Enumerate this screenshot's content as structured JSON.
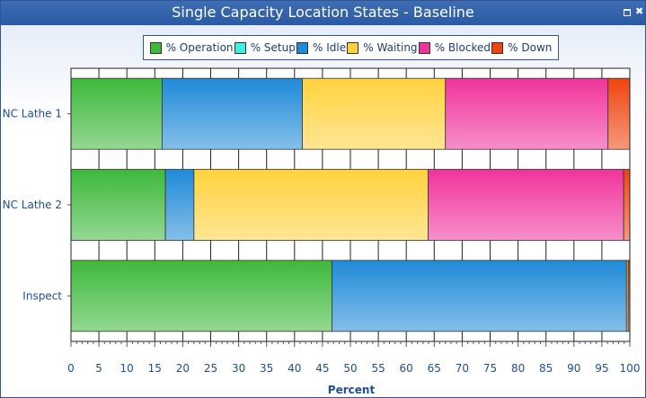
{
  "window": {
    "title": "Single Capacity Location States - Baseline"
  },
  "chart_data": {
    "type": "bar",
    "orientation": "horizontal",
    "stacked": true,
    "title": "Single Capacity Location States - Baseline",
    "xlabel": "Percent",
    "ylabel": "",
    "xlim": [
      0,
      100
    ],
    "xticks": [
      0,
      5,
      10,
      15,
      20,
      25,
      30,
      35,
      40,
      45,
      50,
      55,
      60,
      65,
      70,
      75,
      80,
      85,
      90,
      95,
      100
    ],
    "grid": true,
    "legend_position": "top",
    "categories": [
      "NC Lathe 1",
      "NC Lathe 2",
      "Inspect"
    ],
    "series": [
      {
        "name": "% Operation",
        "color": "#3db83a",
        "values": [
          16.3,
          16.9,
          46.7
        ]
      },
      {
        "name": "% Setup",
        "color": "#3ff0e0",
        "values": [
          0,
          0,
          0
        ]
      },
      {
        "name": "% Idle",
        "color": "#1f8ad8",
        "values": [
          25.1,
          5.1,
          52.7
        ]
      },
      {
        "name": "% Waiting",
        "color": "#ffd23c",
        "values": [
          25.6,
          41.9,
          0.3
        ]
      },
      {
        "name": "% Blocked",
        "color": "#f0339c",
        "values": [
          29.1,
          35.0,
          0
        ]
      },
      {
        "name": "% Down",
        "color": "#f0440f",
        "values": [
          3.9,
          1.1,
          0.3
        ]
      }
    ]
  }
}
